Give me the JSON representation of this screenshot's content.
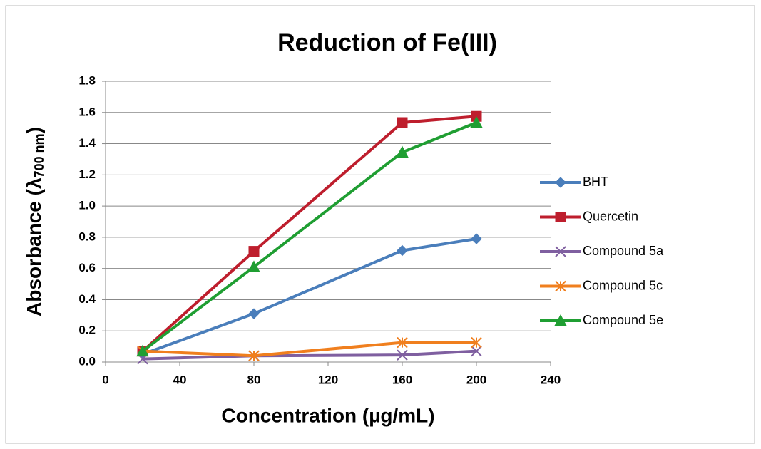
{
  "chart_data": {
    "type": "line",
    "title": "Reduction of Fe(III)",
    "x_label": "Concentration (µg/mL)",
    "y_label_main": "Absorbance (λ",
    "y_label_sub": "700 nm",
    "y_label_end": ")",
    "x": [
      20,
      80,
      160,
      200
    ],
    "xlim": [
      0,
      240
    ],
    "xticks": [
      0,
      40,
      80,
      120,
      160,
      200,
      240
    ],
    "ylim": [
      0,
      1.8
    ],
    "yticks": [
      {
        "value": 0,
        "label": "0.0"
      },
      0.2,
      0.4,
      0.6,
      0.8,
      {
        "value": 1,
        "label": "1.0"
      },
      1.2,
      1.4,
      1.6,
      1.8
    ],
    "grid": true,
    "legend": "right",
    "series": [
      {
        "name": "BHT",
        "color": "#4a7ebb",
        "marker": "diamond",
        "values": [
          0.05,
          0.31,
          0.715,
          0.79
        ]
      },
      {
        "name": "Quercetin",
        "color": "#be1e2d",
        "marker": "square",
        "values": [
          0.07,
          0.71,
          1.535,
          1.575
        ]
      },
      {
        "name": "Compound 5a",
        "color": "#7f5fa0",
        "marker": "x",
        "values": [
          0.02,
          0.04,
          0.045,
          0.07
        ]
      },
      {
        "name": "Compound 5c",
        "color": "#f07f1e",
        "marker": "star",
        "values": [
          0.07,
          0.04,
          0.125,
          0.125
        ]
      },
      {
        "name": "Compound 5e",
        "color": "#1f9e32",
        "marker": "triangle",
        "values": [
          0.07,
          0.61,
          1.345,
          1.535
        ]
      }
    ]
  }
}
